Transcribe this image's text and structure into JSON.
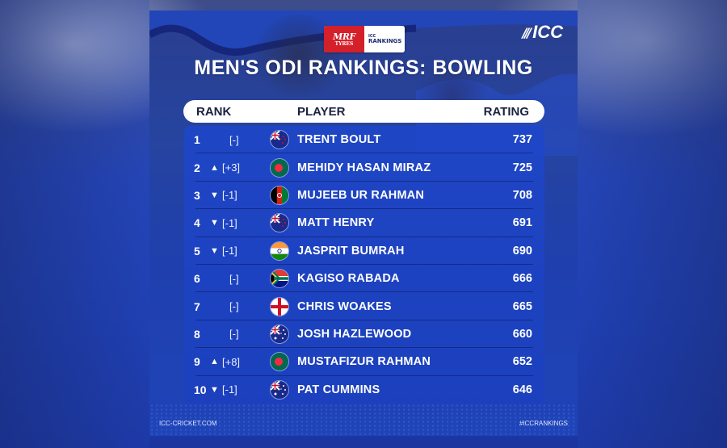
{
  "brand": {
    "sponsor_top": "MRF",
    "sponsor_bottom": "TYRES",
    "rankings_top": "ICC",
    "rankings_bottom": "RANKINGS",
    "logo_text": "ICC"
  },
  "title": "MEN'S ODI RANKINGS: BOWLING",
  "header": {
    "rank": "RANK",
    "player": "PLAYER",
    "rating": "RATING"
  },
  "rows": [
    {
      "rank": "1",
      "arrow": "",
      "move": "[-]",
      "flag": "new-zealand",
      "player": "TRENT BOULT",
      "rating": "737"
    },
    {
      "rank": "2",
      "arrow": "▲",
      "move": "[+3]",
      "flag": "bangladesh",
      "player": "MEHIDY HASAN MIRAZ",
      "rating": "725"
    },
    {
      "rank": "3",
      "arrow": "▼",
      "move": "[-1]",
      "flag": "afghanistan",
      "player": "MUJEEB UR RAHMAN",
      "rating": "708"
    },
    {
      "rank": "4",
      "arrow": "▼",
      "move": "[-1]",
      "flag": "new-zealand",
      "player": "MATT HENRY",
      "rating": "691"
    },
    {
      "rank": "5",
      "arrow": "▼",
      "move": "[-1]",
      "flag": "india",
      "player": "JASPRIT BUMRAH",
      "rating": "690"
    },
    {
      "rank": "6",
      "arrow": "",
      "move": "[-]",
      "flag": "south-africa",
      "player": "KAGISO RABADA",
      "rating": "666"
    },
    {
      "rank": "7",
      "arrow": "",
      "move": "[-]",
      "flag": "england",
      "player": "CHRIS WOAKES",
      "rating": "665"
    },
    {
      "rank": "8",
      "arrow": "",
      "move": "[-]",
      "flag": "australia",
      "player": "JOSH HAZLEWOOD",
      "rating": "660"
    },
    {
      "rank": "9",
      "arrow": "▲",
      "move": "[+8]",
      "flag": "bangladesh",
      "player": "MUSTAFIZUR RAHMAN",
      "rating": "652"
    },
    {
      "rank": "10",
      "arrow": "▼",
      "move": "[-1]",
      "flag": "australia",
      "player": "PAT CUMMINS",
      "rating": "646"
    }
  ],
  "footer": {
    "left": "ICC-CRICKET.COM",
    "right": "#ICCRANKINGS"
  },
  "colors": {
    "card_blue": "#1f3fae",
    "panel_blue": "#1e46c8",
    "sponsor_red": "#d4202a",
    "header_text": "#1b2240"
  }
}
